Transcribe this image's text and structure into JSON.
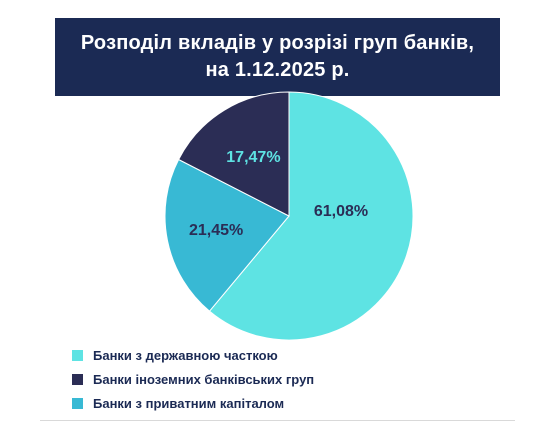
{
  "title": {
    "line1": "Розподіл вкладів у розрізі груп банків,",
    "line2": "на 1.12.2025 р."
  },
  "colors": {
    "banner": "#1b2a54",
    "state": "#5ee3e3",
    "foreign": "#2b2d55",
    "private": "#38b9d4",
    "label_dark": "#2b2d55",
    "label_light": "#5ee3e3"
  },
  "chart_data": {
    "type": "pie",
    "title": "Розподіл вкладів у розрізі груп банків, на 1.12.2025 р.",
    "slices": [
      {
        "name": "Банки з державною часткою",
        "value": 61.08,
        "label": "61,08%",
        "color": "#5ee3e3"
      },
      {
        "name": "Банки з приватним капіталом",
        "value": 21.45,
        "label": "21,45%",
        "color": "#38b9d4"
      },
      {
        "name": "Банки іноземних банківських груп",
        "value": 17.47,
        "label": "17,47%",
        "color": "#2b2d55"
      }
    ],
    "legend_position": "bottom-left"
  },
  "legend": [
    {
      "label": "Банки з державною часткою",
      "color": "#5ee3e3"
    },
    {
      "label": "Банки іноземних банківських груп",
      "color": "#2b2d55"
    },
    {
      "label": "Банки з приватним капіталом",
      "color": "#38b9d4"
    }
  ]
}
